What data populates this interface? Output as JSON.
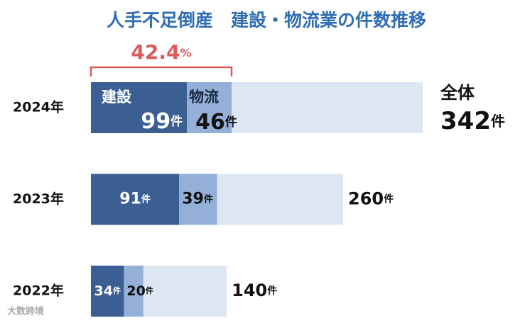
{
  "chart_data": {
    "type": "bar",
    "orientation": "horizontal",
    "title": "人手不足倒産　建設・物流業の件数推移",
    "categories": [
      "2024年",
      "2023年",
      "2022年"
    ],
    "unit": "件",
    "series": [
      {
        "name": "建設",
        "color": "#3b5f92",
        "values": [
          99,
          91,
          34
        ]
      },
      {
        "name": "物流",
        "color": "#95b0d8",
        "values": [
          46,
          39,
          20
        ]
      },
      {
        "name": "全体",
        "color": "#dde6f3",
        "values": [
          342,
          260,
          140
        ]
      }
    ],
    "annotation": {
      "value": 42.4,
      "unit": "%",
      "color": "#e05a5a"
    },
    "watermark": "大数跨境"
  }
}
